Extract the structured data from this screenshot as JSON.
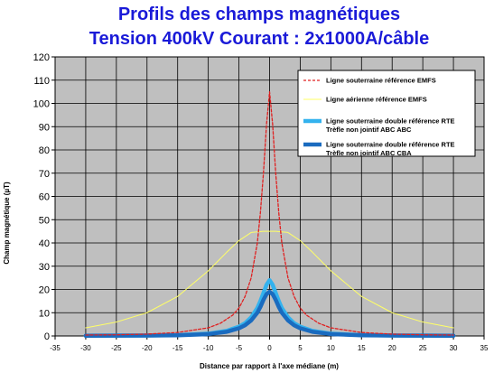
{
  "chart_data": {
    "type": "line",
    "title_line1": "Profils des champs magnétiques",
    "title_line2": "Tension 400kV   Courant  : 2x1000A/câble",
    "xlabel": "Distance par rapport à l'axe médiane (m)",
    "ylabel": "Champ magnétique (µT)",
    "xlim": [
      -35,
      35
    ],
    "ylim": [
      0,
      120
    ],
    "xticks": [
      -35,
      -30,
      -25,
      -20,
      -15,
      -10,
      -5,
      0,
      5,
      10,
      15,
      20,
      25,
      30,
      35
    ],
    "yticks": [
      0,
      10,
      20,
      30,
      40,
      50,
      60,
      70,
      80,
      90,
      100,
      110,
      120
    ],
    "grid": true,
    "legend_position": "top-right",
    "plot_background": "#bfbfbf",
    "series": [
      {
        "name": "Ligne souterraine  référence  EMFS",
        "legend_line2": "",
        "color": "#e02020",
        "style": "dashed",
        "x": [
          -30,
          -25,
          -20,
          -15,
          -10,
          -8,
          -6,
          -5,
          -4,
          -3,
          -2,
          -1.5,
          -1,
          -0.5,
          0,
          0.5,
          1,
          1.5,
          2,
          3,
          4,
          5,
          6,
          8,
          10,
          15,
          20,
          25,
          30
        ],
        "y": [
          0.4,
          0.5,
          0.8,
          1.5,
          3.5,
          5.5,
          9,
          12,
          17,
          25,
          40,
          53,
          70,
          91,
          105,
          91,
          70,
          53,
          40,
          25,
          17,
          12,
          9,
          5.5,
          3.5,
          1.5,
          0.8,
          0.5,
          0.4
        ]
      },
      {
        "name": "Ligne aérienne  référence  EMFS",
        "legend_line2": "",
        "color": "#ffff66",
        "style": "solid",
        "x": [
          -30,
          -25,
          -20,
          -15,
          -10,
          -7,
          -5,
          -3,
          -1,
          0,
          1,
          3,
          5,
          7,
          10,
          15,
          20,
          25,
          30
        ],
        "y": [
          3.5,
          6,
          10,
          17,
          28,
          36,
          41,
          44.5,
          45,
          45,
          45,
          44.5,
          41,
          36,
          28,
          17,
          10,
          6,
          3.5
        ]
      },
      {
        "name": "Ligne souterraine  double  référence  RTE",
        "legend_line2": "Trèfle non jointif ABC  ABC",
        "color": "#33b2ee",
        "style": "thick",
        "x": [
          -30,
          -20,
          -15,
          -10,
          -7,
          -5,
          -4,
          -3,
          -2,
          -1.5,
          -1,
          -0.5,
          0,
          0.5,
          1,
          1.5,
          2,
          3,
          4,
          5,
          7,
          10,
          15,
          20,
          30
        ],
        "y": [
          0.1,
          0.2,
          0.4,
          1,
          2.2,
          4,
          5.5,
          8,
          12,
          15,
          18.5,
          22,
          24,
          22,
          18.5,
          15,
          12,
          8,
          5.5,
          4,
          2.2,
          1,
          0.4,
          0.2,
          0.1
        ]
      },
      {
        "name": "Ligne souterraine  double  référence  RTE",
        "legend_line2": "Trèfle non jointif ABC  CBA",
        "color": "#1a6bbf",
        "style": "thick",
        "x": [
          -30,
          -20,
          -15,
          -10,
          -7,
          -5,
          -4,
          -3,
          -2,
          -1.5,
          -1,
          -0.5,
          0,
          0.5,
          1,
          1.5,
          2,
          3,
          4,
          5,
          7,
          10,
          15,
          20,
          30
        ],
        "y": [
          0.1,
          0.2,
          0.3,
          0.8,
          1.8,
          3.3,
          4.6,
          6.7,
          10,
          12.5,
          15.5,
          18,
          19,
          18,
          15.5,
          12.5,
          10,
          6.7,
          4.6,
          3.3,
          1.8,
          0.8,
          0.3,
          0.2,
          0.1
        ]
      }
    ]
  }
}
